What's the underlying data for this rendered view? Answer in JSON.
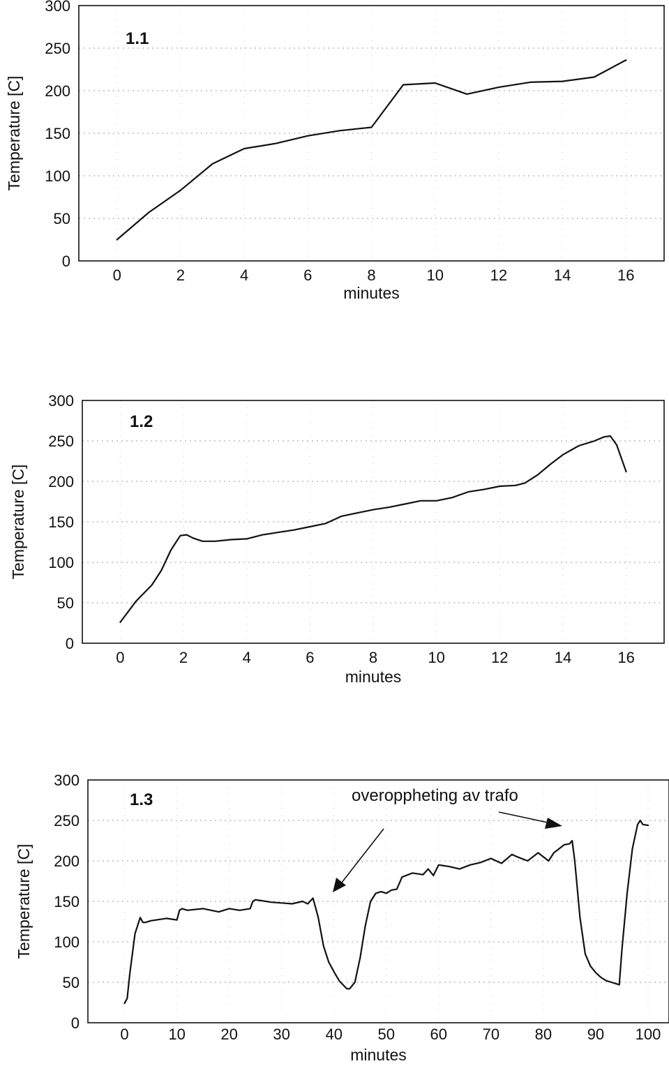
{
  "chart_data": [
    {
      "type": "line",
      "panel_label": "1.1",
      "xlabel": "minutes",
      "ylabel": "Temperature [C]",
      "xticks": [
        "0",
        "2",
        "4",
        "6",
        "8",
        "10",
        "12",
        "14",
        "16"
      ],
      "yticks": [
        "0",
        "50",
        "100",
        "150",
        "200",
        "250",
        "300"
      ],
      "xlim": [
        -1.2,
        17.2
      ],
      "ylim": [
        0,
        300
      ],
      "grid": true,
      "series": [
        {
          "color": "#111111",
          "x": [
            0,
            1,
            2,
            3,
            4,
            5,
            6,
            7,
            8,
            9,
            10,
            11,
            12,
            13,
            14,
            15,
            16
          ],
          "y": [
            25,
            57,
            83,
            114,
            132,
            138,
            147,
            153,
            157,
            207,
            209,
            196,
            204,
            210,
            211,
            216,
            236
          ]
        }
      ]
    },
    {
      "type": "line",
      "panel_label": "1.2",
      "xlabel": "minutes",
      "ylabel": "Temperature [C]",
      "xticks": [
        "0",
        "2",
        "4",
        "6",
        "8",
        "10",
        "12",
        "14",
        "16"
      ],
      "yticks": [
        "0",
        "50",
        "100",
        "150",
        "200",
        "250",
        "300"
      ],
      "xlim": [
        -1.2,
        17.2
      ],
      "ylim": [
        0,
        300
      ],
      "grid": true,
      "series": [
        {
          "color": "#111111",
          "x": [
            0,
            0.5,
            1,
            1.3,
            1.6,
            1.9,
            2.1,
            2.3,
            2.6,
            3,
            3.5,
            4,
            4.5,
            5,
            5.5,
            6,
            6.5,
            7,
            7.5,
            8,
            8.5,
            9,
            9.5,
            10,
            10.5,
            11,
            11.5,
            12,
            12.5,
            12.8,
            13.2,
            13.6,
            14,
            14.5,
            15,
            15.3,
            15.5,
            15.7,
            16
          ],
          "y": [
            26,
            52,
            72,
            90,
            115,
            133,
            134,
            130,
            126,
            126,
            128,
            129,
            134,
            137,
            140,
            144,
            148,
            157,
            161,
            165,
            168,
            172,
            176,
            176,
            180,
            187,
            190,
            194,
            195,
            198,
            208,
            221,
            233,
            244,
            250,
            255,
            256,
            245,
            212
          ]
        }
      ]
    },
    {
      "type": "line",
      "panel_label": "1.3",
      "xlabel": "minutes",
      "ylabel": "Temperature [C]",
      "xticks": [
        "0",
        "10",
        "20",
        "30",
        "40",
        "50",
        "60",
        "70",
        "80",
        "90",
        "100"
      ],
      "yticks": [
        "0",
        "50",
        "100",
        "150",
        "200",
        "250",
        "300"
      ],
      "xlim": [
        -7,
        104
      ],
      "ylim": [
        0,
        300
      ],
      "grid": true,
      "annotation": "overoppheting av trafo",
      "series": [
        {
          "color": "#111111",
          "x": [
            0,
            0.5,
            1,
            2,
            3,
            3.5,
            4,
            5,
            6,
            8,
            9,
            10,
            10.5,
            11,
            12,
            15,
            18,
            20,
            22,
            24,
            24.5,
            25,
            28,
            30,
            32,
            34,
            35,
            36,
            37,
            38,
            39,
            40,
            41,
            42,
            42.5,
            43,
            44,
            45,
            46,
            47,
            48,
            49,
            50,
            51,
            52,
            53,
            55,
            57,
            58,
            59,
            60,
            62,
            64,
            66,
            68,
            70,
            72,
            74,
            75,
            77,
            79,
            80,
            81,
            82,
            83,
            84,
            85,
            85.5,
            86,
            87,
            88,
            89,
            90,
            91,
            92,
            93,
            94,
            94.5,
            95,
            96,
            97,
            98,
            98.5,
            99,
            100
          ],
          "y": [
            24,
            30,
            60,
            110,
            130,
            124,
            124,
            126,
            127,
            129,
            128,
            127,
            139,
            141,
            139,
            141,
            137,
            141,
            139,
            141,
            150,
            152,
            149,
            148,
            147,
            150,
            147,
            154,
            130,
            95,
            75,
            63,
            52,
            45,
            42,
            42,
            50,
            80,
            120,
            150,
            160,
            162,
            160,
            164,
            165,
            180,
            185,
            183,
            190,
            182,
            195,
            193,
            190,
            195,
            198,
            203,
            197,
            208,
            205,
            200,
            210,
            205,
            200,
            210,
            215,
            220,
            221,
            225,
            200,
            130,
            85,
            70,
            62,
            56,
            52,
            50,
            48,
            47,
            90,
            160,
            215,
            245,
            250,
            245,
            244
          ]
        }
      ]
    }
  ]
}
